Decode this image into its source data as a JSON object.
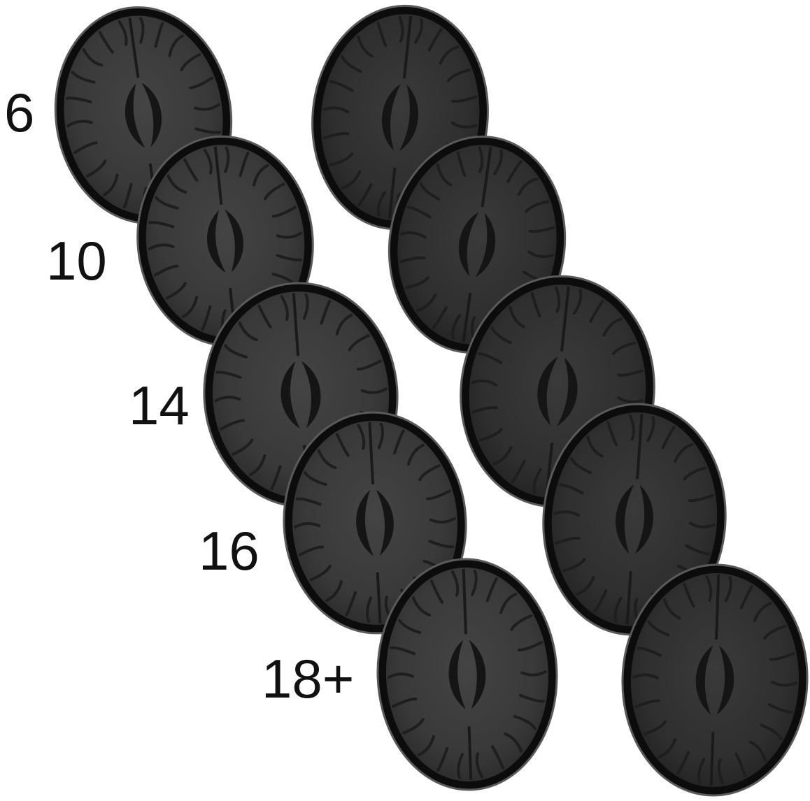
{
  "rows": [
    {
      "age_label": "6"
    },
    {
      "age_label": "10"
    },
    {
      "age_label": "14"
    },
    {
      "age_label": "16"
    },
    {
      "age_label": "18+"
    }
  ],
  "columns": 2,
  "colors": {
    "background": "#ffffff",
    "skull_rim": "#0c0c0c",
    "brain_tissue": "#3c3c3c",
    "ventricle": "#151515",
    "label_text": "#111111"
  }
}
